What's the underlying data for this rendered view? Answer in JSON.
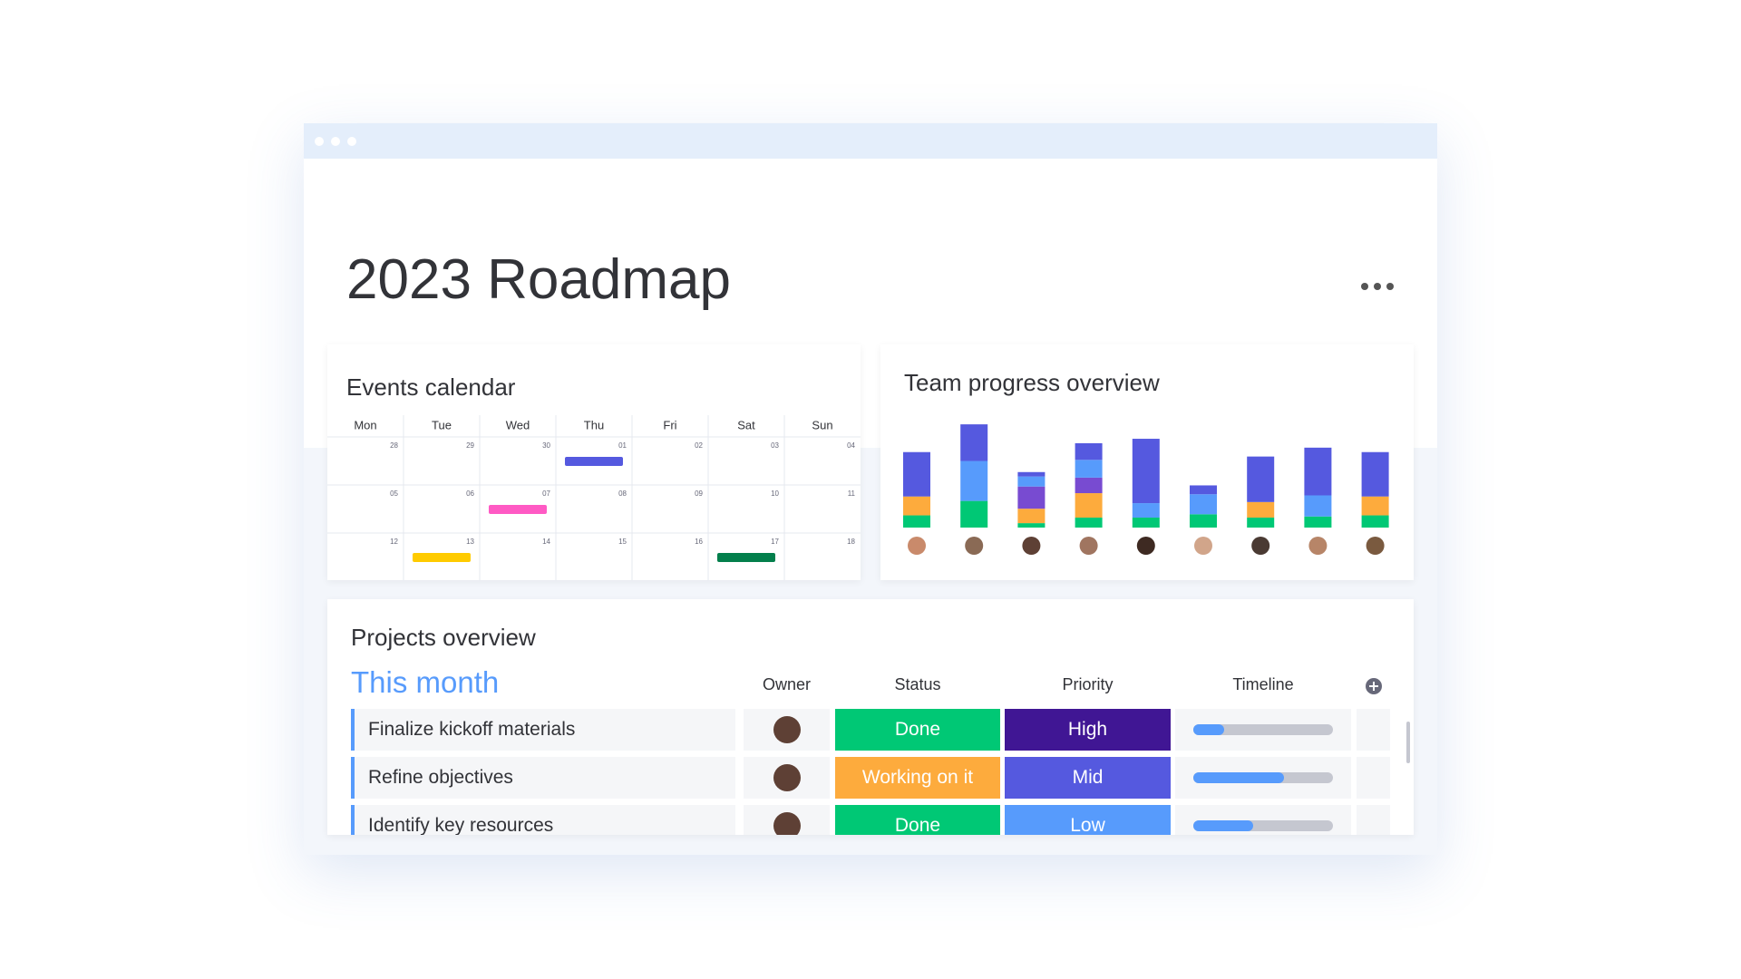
{
  "header": {
    "title": "2023 Roadmap"
  },
  "calendar": {
    "title": "Events calendar",
    "days": [
      "Mon",
      "Tue",
      "Wed",
      "Thu",
      "Fri",
      "Sat",
      "Sun"
    ],
    "weeks": [
      [
        "28",
        "29",
        "30",
        "01",
        "02",
        "03",
        "04"
      ],
      [
        "05",
        "06",
        "07",
        "08",
        "09",
        "10",
        "11"
      ],
      [
        "12",
        "13",
        "14",
        "15",
        "16",
        "17",
        "18"
      ]
    ]
  },
  "chart_data": {
    "type": "stacked-bar",
    "title": "Team progress overview",
    "series": [
      {
        "color": "#00c875",
        "values": [
          11,
          24,
          4,
          9,
          9,
          12,
          9,
          10,
          11
        ]
      },
      {
        "color": "#fdab3d",
        "values": [
          17,
          0,
          13,
          22,
          0,
          0,
          14,
          0,
          17
        ]
      },
      {
        "color": "#784bd1",
        "values": [
          0,
          0,
          20,
          14,
          0,
          0,
          0,
          0,
          0
        ]
      },
      {
        "color": "#579bfc",
        "values": [
          0,
          36,
          9,
          16,
          13,
          18,
          0,
          19,
          0
        ]
      },
      {
        "color": "#5559df",
        "values": [
          40,
          33,
          4,
          15,
          58,
          8,
          41,
          43,
          40
        ]
      }
    ]
  },
  "projects": {
    "title": "Projects overview",
    "group": "This month",
    "columns": [
      "Owner",
      "Status",
      "Priority",
      "Timeline"
    ],
    "rows": [
      {
        "name": "Finalize kickoff materials",
        "status": "Done",
        "status_color": "#00c875",
        "priority": "High",
        "priority_color": "#401694",
        "timeline": 22
      },
      {
        "name": "Refine objectives",
        "status": "Working on it",
        "status_color": "#fdab3d",
        "priority": "Mid",
        "priority_color": "#5559df",
        "timeline": 65
      },
      {
        "name": "Identify key resources",
        "status": "Done",
        "status_color": "#00c875",
        "priority": "Low",
        "priority_color": "#579bfc",
        "timeline": 43
      }
    ]
  }
}
